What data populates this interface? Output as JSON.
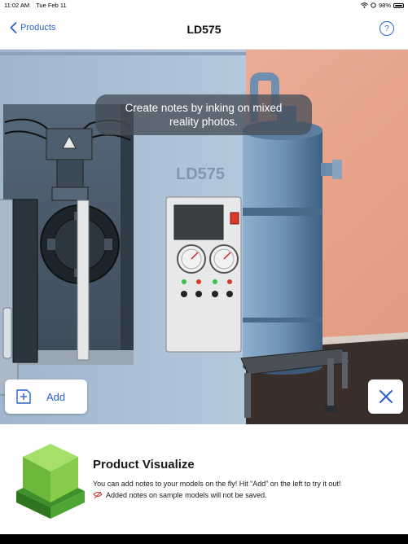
{
  "status_bar": {
    "time": "11:02 AM",
    "date": "Tue Feb 11",
    "battery": "98%"
  },
  "nav": {
    "back_label": "Products",
    "title": "LD575",
    "help_label": "?"
  },
  "scene": {
    "machine_label": "LD575"
  },
  "tip": {
    "text": "Create notes by inking on mixed reality photos."
  },
  "add_button": {
    "label": "Add"
  },
  "info_card": {
    "title": "Product Visualize",
    "description": "You can add notes to your models on the fly! Hit “Add” on the left to try it out!",
    "warning": "Added notes on sample models will not be saved."
  },
  "colors": {
    "accent": "#2a62c9",
    "wall": "#e9a58f",
    "machine_panel": "#a9c0d6",
    "logo_green": "#7cc243",
    "warning_red": "#cc3333"
  },
  "icons": [
    "chevron-left-icon",
    "help-icon",
    "wifi-icon",
    "battery-icon",
    "add-note-icon",
    "close-icon",
    "cube-logo-icon",
    "warning-icon"
  ]
}
